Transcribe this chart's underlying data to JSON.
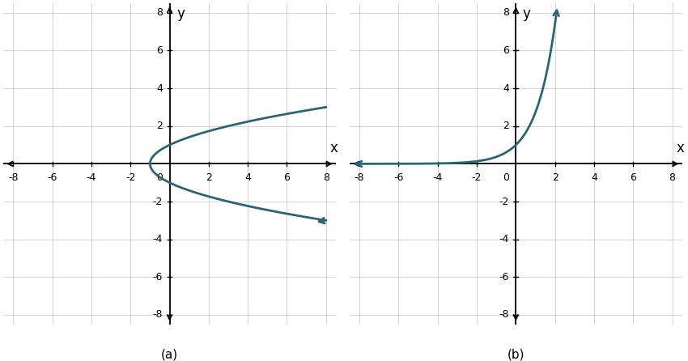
{
  "graph_a": {
    "title": "(a)",
    "xlim": [
      -8.5,
      8.5
    ],
    "ylim": [
      -8.5,
      8.5
    ],
    "xticks": [
      -8,
      -6,
      -4,
      -2,
      2,
      4,
      6,
      8
    ],
    "yticks": [
      -8,
      -6,
      -4,
      -2,
      2,
      4,
      6,
      8
    ],
    "curve_color": "#2a6475",
    "curve_lw": 2.0,
    "vertex_x": -1,
    "vertex_y": 0,
    "parabola_a": 1,
    "y_max": 3.1,
    "y_min": -3.1
  },
  "graph_b": {
    "title": "(b)",
    "xlim": [
      -8.5,
      8.5
    ],
    "ylim": [
      -8.5,
      8.5
    ],
    "xticks": [
      -8,
      -6,
      -4,
      -2,
      2,
      4,
      6,
      8
    ],
    "yticks": [
      -8,
      -6,
      -4,
      -2,
      2,
      4,
      6,
      8
    ],
    "curve_color": "#2a6475",
    "curve_lw": 2.0,
    "x_start": -8,
    "x_end": 3.08
  },
  "axis_color": "#000000",
  "grid_color": "#cccccc",
  "grid_lw": 0.6,
  "tick_label_fontsize": 9,
  "axis_label_fontsize": 12,
  "subtitle_fontsize": 11,
  "bg_color": "#ffffff"
}
